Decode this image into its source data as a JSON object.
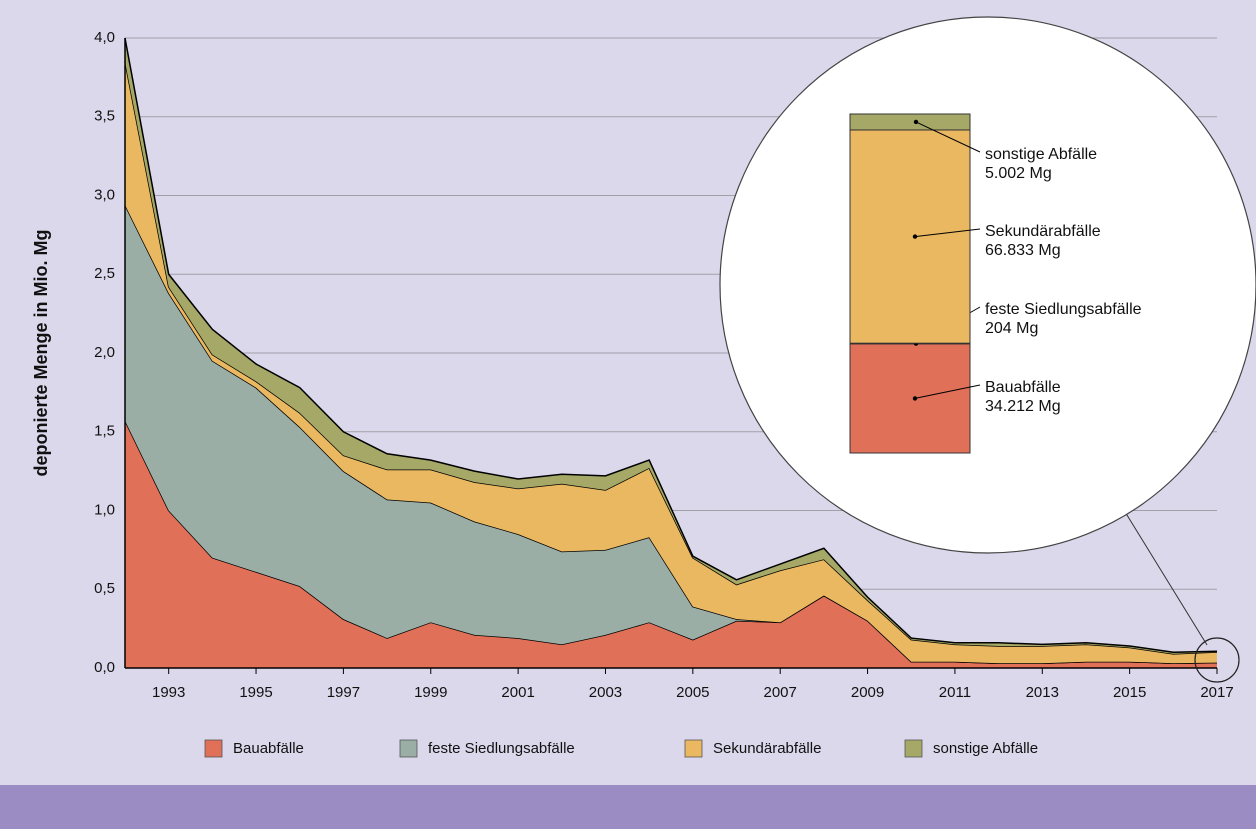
{
  "chart_data": {
    "type": "stacked_area",
    "y_label": "deponierte Menge in Mio. Mg",
    "x": [
      1992,
      1993,
      1994,
      1995,
      1996,
      1997,
      1998,
      1999,
      2000,
      2001,
      2002,
      2003,
      2004,
      2005,
      2006,
      2007,
      2008,
      2009,
      2010,
      2011,
      2012,
      2013,
      2014,
      2015,
      2016,
      2017
    ],
    "xlim": [
      1992,
      2017
    ],
    "xticks": [
      1993,
      1995,
      1997,
      1999,
      2001,
      2003,
      2005,
      2007,
      2009,
      2011,
      2013,
      2015,
      2017
    ],
    "ylim": [
      0,
      4
    ],
    "yticks": [
      {
        "value": 0,
        "label": "0,0"
      },
      {
        "value": 0.5,
        "label": "0,5"
      },
      {
        "value": 1,
        "label": "1,0"
      },
      {
        "value": 1.5,
        "label": "1,5"
      },
      {
        "value": 2,
        "label": "2,0"
      },
      {
        "value": 2.5,
        "label": "2,5"
      },
      {
        "value": 3,
        "label": "3,0"
      },
      {
        "value": 3.5,
        "label": "3,5"
      },
      {
        "value": 4,
        "label": "4,0"
      }
    ],
    "grid": true,
    "legend": "bottom",
    "series": [
      {
        "name": "Bauabfälle",
        "color": "#e07058",
        "values": [
          1.57,
          1.0,
          0.7,
          0.61,
          0.52,
          0.31,
          0.19,
          0.29,
          0.21,
          0.19,
          0.15,
          0.21,
          0.29,
          0.18,
          0.3,
          0.29,
          0.46,
          0.3,
          0.04,
          0.04,
          0.03,
          0.03,
          0.04,
          0.04,
          0.03,
          0.034212
        ],
        "value_labels": [
          null,
          null,
          null,
          null,
          null,
          null,
          null,
          null,
          null,
          null,
          null,
          null,
          null,
          null,
          null,
          null,
          null,
          null,
          null,
          null,
          null,
          null,
          null,
          null,
          null,
          "34.212 Mg"
        ]
      },
      {
        "name": "feste Siedlungsabfälle",
        "color": "#9aaea6",
        "values": [
          1.37,
          1.38,
          1.25,
          1.17,
          1.01,
          0.94,
          0.88,
          0.76,
          0.72,
          0.66,
          0.59,
          0.54,
          0.54,
          0.21,
          0.01,
          0,
          0,
          0,
          0,
          0,
          0,
          0,
          0,
          0,
          0,
          0.000204
        ],
        "value_labels": [
          null,
          null,
          null,
          null,
          null,
          null,
          null,
          null,
          null,
          null,
          null,
          null,
          null,
          null,
          null,
          null,
          null,
          null,
          null,
          null,
          null,
          null,
          null,
          null,
          null,
          "204 Mg"
        ]
      },
      {
        "name": "Sekundärabfälle",
        "color": "#ebb862",
        "values": [
          0.91,
          0.04,
          0.04,
          0.04,
          0.09,
          0.1,
          0.19,
          0.21,
          0.25,
          0.29,
          0.43,
          0.38,
          0.44,
          0.31,
          0.22,
          0.33,
          0.23,
          0.13,
          0.14,
          0.11,
          0.11,
          0.11,
          0.11,
          0.09,
          0.06,
          0.066833
        ],
        "value_labels": [
          null,
          null,
          null,
          null,
          null,
          null,
          null,
          null,
          null,
          null,
          null,
          null,
          null,
          null,
          null,
          null,
          null,
          null,
          null,
          null,
          null,
          null,
          null,
          null,
          null,
          "66.833 Mg"
        ]
      },
      {
        "name": "sonstige Abfälle",
        "color": "#a5a866",
        "values": [
          0.15,
          0.08,
          0.16,
          0.11,
          0.16,
          0.15,
          0.1,
          0.06,
          0.07,
          0.06,
          0.06,
          0.09,
          0.05,
          0.01,
          0.03,
          0.04,
          0.07,
          0.02,
          0.01,
          0.01,
          0.02,
          0.01,
          0.01,
          0.01,
          0.01,
          0.005002
        ],
        "value_labels": [
          null,
          null,
          null,
          null,
          null,
          null,
          null,
          null,
          null,
          null,
          null,
          null,
          null,
          null,
          null,
          null,
          null,
          null,
          null,
          null,
          null,
          null,
          null,
          null,
          null,
          "5.002 Mg"
        ]
      }
    ]
  }
}
